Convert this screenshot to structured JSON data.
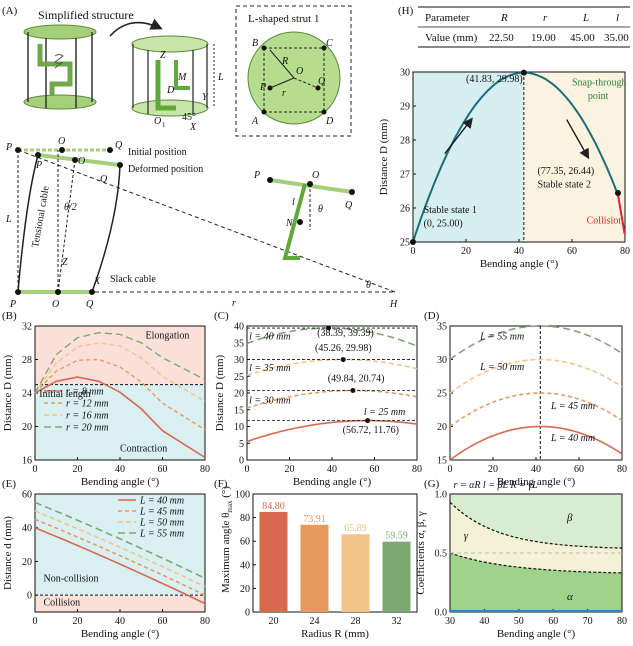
{
  "panel_labels": {
    "A": "(A)",
    "B": "(B)",
    "C": "(C)",
    "D": "(D)",
    "E": "(E)",
    "F": "(F)",
    "G": "(G)",
    "H": "(H)"
  },
  "panelA": {
    "title": "Simplified structure",
    "inset_title": "L-shaped strut 1",
    "labels": {
      "B2": "B",
      "B2s": "2",
      "C2": "C",
      "C2s": "2",
      "A2": "A",
      "A2s": "2",
      "D2": "D",
      "D2s": "2",
      "R": "R",
      "r": "r",
      "O2": "O",
      "O2s": "2",
      "P2": "P",
      "P2s": "2",
      "Q2": "Q",
      "Q2s": "2",
      "Z": "Z",
      "L": "L",
      "M": "M",
      "D": "D",
      "Y": "Y",
      "X": "X",
      "O1": "O",
      "O1s": "1",
      "angle": "45°",
      "initial": "Initial position",
      "deformed": "Deformed position",
      "tensional": "Tensional cable",
      "slack": "Slack cable",
      "theta2": "θ/2",
      "theta": "θ",
      "l": "l",
      "N": "N",
      "rs": "r",
      "rss": "s",
      "H": "H",
      "P1": "P",
      "P1s": "1",
      "Q1": "Q",
      "Q1s": "1",
      "P21": "P",
      "P21s": "2_1",
      "O21": "O",
      "O21s": "2_1",
      "Q21": "Q",
      "Q21s": "2_1"
    }
  },
  "table": {
    "headers": [
      "Parameter",
      "R",
      "r",
      "L",
      "l"
    ],
    "row": [
      "Value (mm)",
      "22.50",
      "19.00",
      "45.00",
      "35.00"
    ]
  },
  "chart_data": [
    {
      "id": "H",
      "type": "line",
      "xlabel": "Bending angle (°)",
      "ylabel": "Distance D (mm)",
      "xlim": [
        0,
        80
      ],
      "ylim": [
        25,
        30
      ],
      "xticks": [
        0,
        20,
        40,
        60,
        80
      ],
      "yticks": [
        25,
        26,
        27,
        28,
        29,
        30
      ],
      "series": [
        {
          "values_x": [
            0,
            10,
            20,
            30,
            41.83,
            50,
            60,
            70,
            77.35,
            80
          ],
          "values_y": [
            25.0,
            26.9,
            28.3,
            29.4,
            29.98,
            29.75,
            28.9,
            27.6,
            26.44,
            25.7
          ]
        }
      ],
      "annotations": {
        "peak": "(41.83, 29.98)",
        "snap1": "Snap-through",
        "snap2": "point",
        "s2a": "(77.35, 26.44)",
        "s2b": "Stable state 2",
        "s1a": "Stable state 1",
        "s1b": "(0, 25.00)",
        "collision": "Collision"
      },
      "regions": {
        "stable1_color": "#d6eef0",
        "stable2_color": "#fbf3e0"
      }
    },
    {
      "id": "B",
      "type": "line",
      "xlabel": "Bending angle (°)",
      "ylabel": "Distance D (mm)",
      "xlim": [
        0,
        80
      ],
      "ylim": [
        16,
        32
      ],
      "xticks": [
        0,
        20,
        40,
        60,
        80
      ],
      "yticks": [
        16,
        20,
        24,
        28,
        32
      ],
      "series": [
        {
          "name": "r = 8 mm",
          "values": [
            24,
            25.4,
            25.9,
            25.4,
            24.1,
            22.1,
            19.5,
            16.3
          ]
        },
        {
          "name": "r = 12 mm",
          "values": [
            24,
            26.6,
            27.9,
            28.0,
            27.1,
            25.3,
            22.8,
            19.6
          ]
        },
        {
          "name": "r = 16 mm",
          "values": [
            24,
            27.6,
            29.5,
            30.0,
            29.6,
            28.2,
            26.0,
            23.0
          ]
        },
        {
          "name": "r = 20 mm",
          "values": [
            24,
            28.6,
            30.6,
            31.2,
            31.0,
            30.0,
            28.2,
            25.6
          ]
        }
      ],
      "x": [
        0,
        10,
        20,
        30,
        40,
        50,
        60,
        80
      ],
      "initial_length": 25,
      "annotations": {
        "elongation": "Elongation",
        "initial": "Initial length",
        "contraction": "Contraction"
      }
    },
    {
      "id": "C",
      "type": "line",
      "xlabel": "Bending angle (°)",
      "ylabel": "Distance D (mm)",
      "xlim": [
        0,
        80
      ],
      "ylim": [
        0,
        40
      ],
      "xticks": [
        0,
        20,
        40,
        60,
        80
      ],
      "yticks": [
        0,
        5,
        10,
        15,
        20,
        25,
        30,
        35,
        40
      ],
      "series": [
        {
          "name": "l = 25 mm",
          "peak": [
            56.72,
            11.76
          ],
          "start": 5.5
        },
        {
          "name": "l = 30 mm",
          "peak": [
            49.84,
            20.74
          ],
          "start": 15.5
        },
        {
          "name": "l = 35 mm",
          "peak": [
            45.26,
            29.98
          ],
          "start": 25.3
        },
        {
          "name": "l = 40 mm",
          "peak": [
            38.39,
            39.39
          ],
          "start": 34.8
        }
      ],
      "annotations": {
        "p1": "(38.39, 39.39)",
        "p2": "(45.26, 29.98)",
        "p3": "(49.84, 20.74)",
        "p4": "(56.72, 11.76)",
        "l40": "l = 40 mm",
        "l35": "l = 35 mm",
        "l30": "l = 30 mm",
        "l25": "l = 25 mm"
      }
    },
    {
      "id": "D",
      "type": "line",
      "xlabel": "Bending angle (°)",
      "ylabel": "",
      "xlim": [
        0,
        80
      ],
      "ylim": [
        15,
        35
      ],
      "xticks": [
        0,
        20,
        40,
        60,
        80
      ],
      "yticks": [
        15,
        20,
        25,
        30,
        35
      ],
      "series": [
        {
          "name": "L = 40 mm",
          "start": 15.0,
          "peak": 20.0
        },
        {
          "name": "L = 45 mm",
          "start": 20.0,
          "peak": 25.0
        },
        {
          "name": "L = 50 mm",
          "start": 25.0,
          "peak": 30.0
        },
        {
          "name": "L = 55 mm",
          "start": 30.0,
          "peak": 35.0
        }
      ],
      "peak_x": 42
    },
    {
      "id": "E",
      "type": "line",
      "xlabel": "Bending angle (°)",
      "ylabel": "Distance d (mm)",
      "xlim": [
        0,
        80
      ],
      "ylim": [
        -10,
        60
      ],
      "xticks": [
        0,
        20,
        40,
        60,
        80
      ],
      "yticks": [
        0,
        20,
        40,
        60
      ],
      "series": [
        {
          "name": "L = 40 mm",
          "values_start": 40,
          "values_end": -5
        },
        {
          "name": "L = 45 mm",
          "values_start": 45,
          "values_end": 0
        },
        {
          "name": "L = 50 mm",
          "values_start": 50,
          "values_end": 5
        },
        {
          "name": "L = 55 mm",
          "values_start": 55,
          "values_end": 10
        }
      ],
      "annotations": {
        "noncollision": "Non-collision",
        "collision": "Collision"
      }
    },
    {
      "id": "F",
      "type": "bar",
      "xlabel": "Radius R (mm)",
      "ylabel": "Maximum angle θ",
      "ylabel_sub": "max",
      "ylabel_unit": " (°)",
      "categories": [
        "20",
        "24",
        "28",
        "32"
      ],
      "values": [
        84.8,
        73.91,
        65.89,
        59.59
      ],
      "value_labels": [
        "84.80",
        "73.91",
        "65.89",
        "59.59"
      ],
      "colors": [
        "#d9694e",
        "#e89a5e",
        "#f3c48a",
        "#7ea873"
      ],
      "ylim": [
        0,
        100
      ],
      "yticks": [
        0,
        20,
        40,
        60,
        80,
        100
      ]
    },
    {
      "id": "G",
      "type": "line",
      "xlabel": "Bending angle (°)",
      "ylabel": "Coefficients α, β, γ",
      "xlim": [
        30,
        80
      ],
      "ylim": [
        0,
        1.0
      ],
      "xticks": [
        30,
        40,
        50,
        60,
        70,
        80
      ],
      "yticks": [
        0,
        0.5,
        1.0
      ],
      "series": [
        {
          "name": "β",
          "start": 1.0,
          "end": 1.0
        },
        {
          "name": "γ",
          "start": 0.93,
          "end": 0.53
        },
        {
          "name": "α",
          "start": 0.5,
          "end": 0.32
        }
      ],
      "annotations": {
        "formula": "r = αR    l = βL    R = γL",
        "beta": "β",
        "gamma": "γ",
        "alpha": "α"
      }
    }
  ]
}
